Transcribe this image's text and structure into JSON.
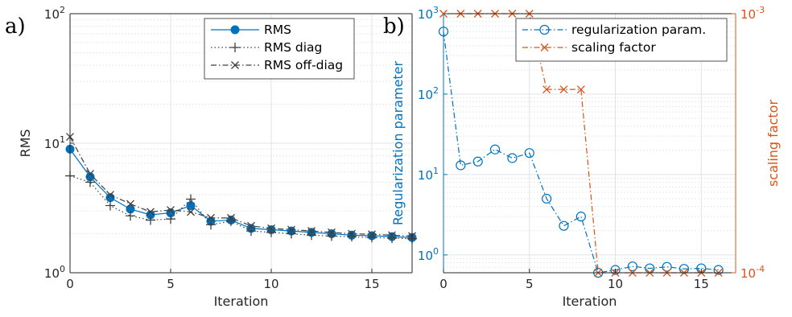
{
  "chart_data": [
    {
      "type": "line",
      "panel_label": "a)",
      "xlabel": "Iteration",
      "ylabel": "RMS",
      "xlim": [
        0,
        17
      ],
      "ylim": [
        1,
        100
      ],
      "yscale": "log",
      "grid": true,
      "legend_placement": "top-right",
      "x_ticks": [
        "0",
        "5",
        "10",
        "15"
      ],
      "y_tick_bases": [
        "10",
        "10",
        "10"
      ],
      "y_tick_exps": [
        "0",
        "1",
        "2"
      ],
      "x": [
        0,
        1,
        2,
        3,
        4,
        5,
        6,
        7,
        8,
        9,
        10,
        11,
        12,
        13,
        14,
        15,
        16,
        17
      ],
      "series": [
        {
          "name": "RMS",
          "marker": "dot",
          "line": "solid",
          "color": "#0072BD",
          "values": [
            9.0,
            5.5,
            3.8,
            3.1,
            2.8,
            2.9,
            3.3,
            2.5,
            2.55,
            2.2,
            2.15,
            2.1,
            2.05,
            2.0,
            1.95,
            1.93,
            1.9,
            1.87
          ]
        },
        {
          "name": "RMS diag",
          "marker": "plus",
          "line": "dotted",
          "color": "#404040",
          "values": [
            5.6,
            5.0,
            3.3,
            2.75,
            2.55,
            2.6,
            3.7,
            2.35,
            2.5,
            2.1,
            2.05,
            2.0,
            1.95,
            1.92,
            1.9,
            1.87,
            1.85,
            1.83
          ]
        },
        {
          "name": "RMS off-diag",
          "marker": "x",
          "line": "dashdot",
          "color": "#404040",
          "values": [
            11.2,
            5.8,
            4.0,
            3.4,
            2.95,
            3.05,
            2.95,
            2.65,
            2.65,
            2.3,
            2.2,
            2.15,
            2.1,
            2.05,
            2.0,
            1.98,
            1.95,
            1.92
          ]
        }
      ]
    },
    {
      "type": "line",
      "panel_label": "b)",
      "xlabel": "Iteration",
      "ylabel": "Regularization parameter",
      "ylabel_right": "scaling factor",
      "xlim": [
        0,
        17
      ],
      "ylim": [
        0.6,
        1000
      ],
      "ylim_right": [
        0.0001,
        0.001
      ],
      "yscale": "log",
      "grid": true,
      "legend_placement": "top-right",
      "x_ticks": [
        "0",
        "5",
        "10",
        "15"
      ],
      "y_tick_bases": [
        "10",
        "10",
        "10",
        "10"
      ],
      "y_tick_exps": [
        "0",
        "1",
        "2",
        "3"
      ],
      "y_right_ticks": [
        {
          "base": "10",
          "exp": "-4"
        },
        {
          "base": "10",
          "exp": "-3"
        }
      ],
      "left_axis_color": "#0072BD",
      "right_axis_color": "#D95319",
      "x": [
        0,
        1,
        2,
        3,
        4,
        5,
        6,
        7,
        8,
        9,
        10,
        11,
        12,
        13,
        14,
        15,
        16
      ],
      "series": [
        {
          "name": "regularization param.",
          "marker": "circle",
          "line": "dashdot",
          "color": "#0072BD",
          "axis": "left",
          "values": [
            600,
            13,
            14.5,
            20.5,
            16,
            18.5,
            5,
            2.3,
            3.0,
            0.6,
            0.65,
            0.72,
            0.68,
            0.71,
            0.67,
            0.68,
            0.65
          ]
        },
        {
          "name": "scaling factor",
          "marker": "x",
          "line": "dashdot",
          "color": "#D95319",
          "axis": "right",
          "values": [
            0.001,
            0.001,
            0.001,
            0.001,
            0.001,
            0.001,
            0.00051,
            0.00051,
            0.00051,
            0.0001,
            0.0001,
            0.0001,
            0.0001,
            0.0001,
            0.0001,
            0.0001,
            0.0001
          ]
        }
      ]
    }
  ]
}
